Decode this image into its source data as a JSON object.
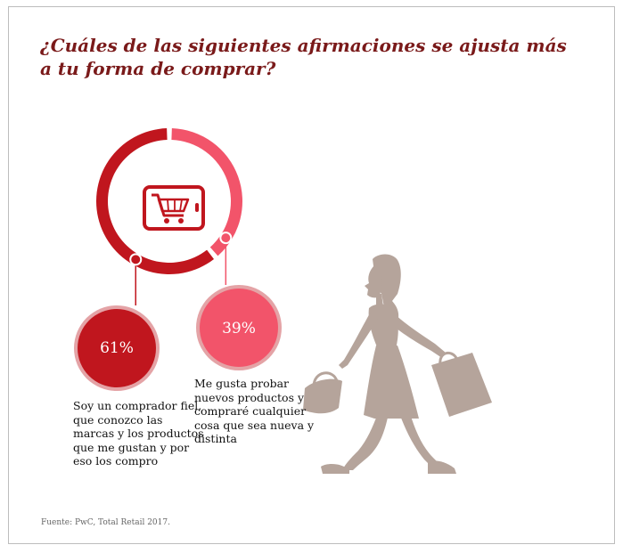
{
  "title": "¿Cuáles de las siguientes afirmaciones se ajusta más a tu forma de comprar?",
  "source": "Fuente: PwC, Total Retail 2017.",
  "icons": [
    "shopping-cart-icon",
    "shopping-woman-silhouette"
  ],
  "colors": {
    "title": "#7a1a1a",
    "primary": "#c0161e",
    "secondary": "#f2546a",
    "outline": "#e4a3a6",
    "silhouette": "#b5a49b"
  },
  "chart_data": {
    "type": "pie",
    "style": "donut",
    "categories": [
      "Soy un comprador fiel, que conozco las marcas y los productos que me gustan y por eso los compro",
      "Me gusta probar nuevos productos y compraré cualquier cosa que sea nueva y distinta"
    ],
    "values": [
      61,
      39
    ],
    "labels": [
      "61%",
      "39%"
    ],
    "colors": [
      "#c0161e",
      "#f2546a"
    ]
  }
}
